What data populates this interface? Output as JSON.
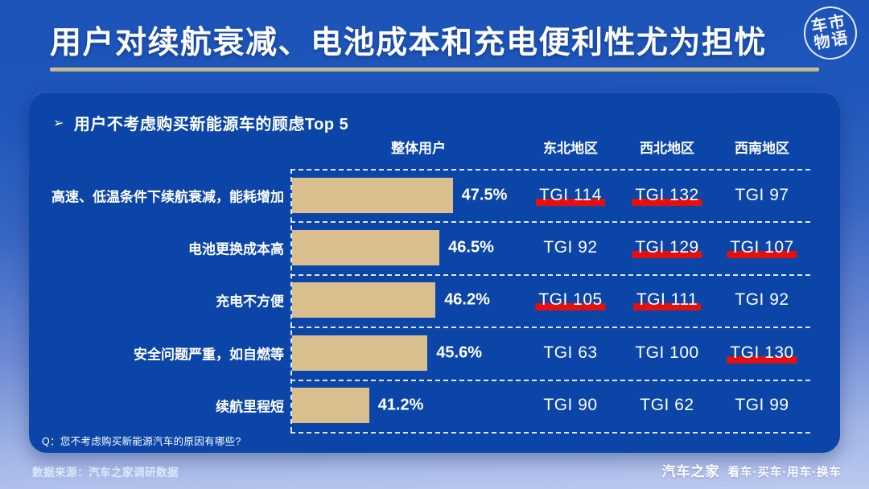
{
  "page": {
    "title": "用户对续航衰减、电池成本和充电便利性尤为担忧",
    "logo": {
      "line1": "车市",
      "line2": "物语"
    }
  },
  "panel": {
    "heading_marker": "➢",
    "heading": "用户不考虑购买新能源车的顾虑Top 5",
    "question": "Q：您不考虑购买新能源汽车的原因有哪些?"
  },
  "footer": {
    "source": "数据来源：汽车之家调研数据",
    "brand": "汽车之家",
    "tagline": "看车·买车·用车·换车"
  },
  "colors": {
    "background_top": "#1B53B8",
    "background_bottom": "#BCC9F0",
    "panel": "#0B45A7",
    "bar": "#D9BE8E",
    "tgi_highlight_underline": "#E41010",
    "title_underline": "#C9BC98"
  },
  "chart_data": {
    "type": "bar",
    "title": "用户不考虑购买新能源车的顾虑Top 5",
    "orientation": "horizontal",
    "unit": "%",
    "value_axis_visible": false,
    "grid": "dashed-row-separators",
    "columns": [
      "整体用户",
      "东北地区",
      "西北地区",
      "西南地区"
    ],
    "tgi_label": "TGI",
    "rows": [
      {
        "label": "高速、低温条件下续航衰减，能耗增加",
        "value": 47.5,
        "value_label": "47.5%",
        "tgi": [
          {
            "region": "东北地区",
            "value": 114,
            "highlighted": true
          },
          {
            "region": "西北地区",
            "value": 132,
            "highlighted": true
          },
          {
            "region": "西南地区",
            "value": 97,
            "highlighted": false
          }
        ]
      },
      {
        "label": "电池更换成本高",
        "value": 46.5,
        "value_label": "46.5%",
        "tgi": [
          {
            "region": "东北地区",
            "value": 92,
            "highlighted": false
          },
          {
            "region": "西北地区",
            "value": 129,
            "highlighted": true
          },
          {
            "region": "西南地区",
            "value": 107,
            "highlighted": true
          }
        ]
      },
      {
        "label": "充电不方便",
        "value": 46.2,
        "value_label": "46.2%",
        "tgi": [
          {
            "region": "东北地区",
            "value": 105,
            "highlighted": true
          },
          {
            "region": "西北地区",
            "value": 111,
            "highlighted": true
          },
          {
            "region": "西南地区",
            "value": 92,
            "highlighted": false
          }
        ]
      },
      {
        "label": "安全问题严重，如自燃等",
        "value": 45.6,
        "value_label": "45.6%",
        "tgi": [
          {
            "region": "东北地区",
            "value": 63,
            "highlighted": false
          },
          {
            "region": "西北地区",
            "value": 100,
            "highlighted": false
          },
          {
            "region": "西南地区",
            "value": 130,
            "highlighted": true
          }
        ]
      },
      {
        "label": "续航里程短",
        "value": 41.2,
        "value_label": "41.2%",
        "tgi": [
          {
            "region": "东北地区",
            "value": 90,
            "highlighted": false
          },
          {
            "region": "西北地区",
            "value": 62,
            "highlighted": false
          },
          {
            "region": "西南地区",
            "value": 99,
            "highlighted": false
          }
        ]
      }
    ]
  }
}
